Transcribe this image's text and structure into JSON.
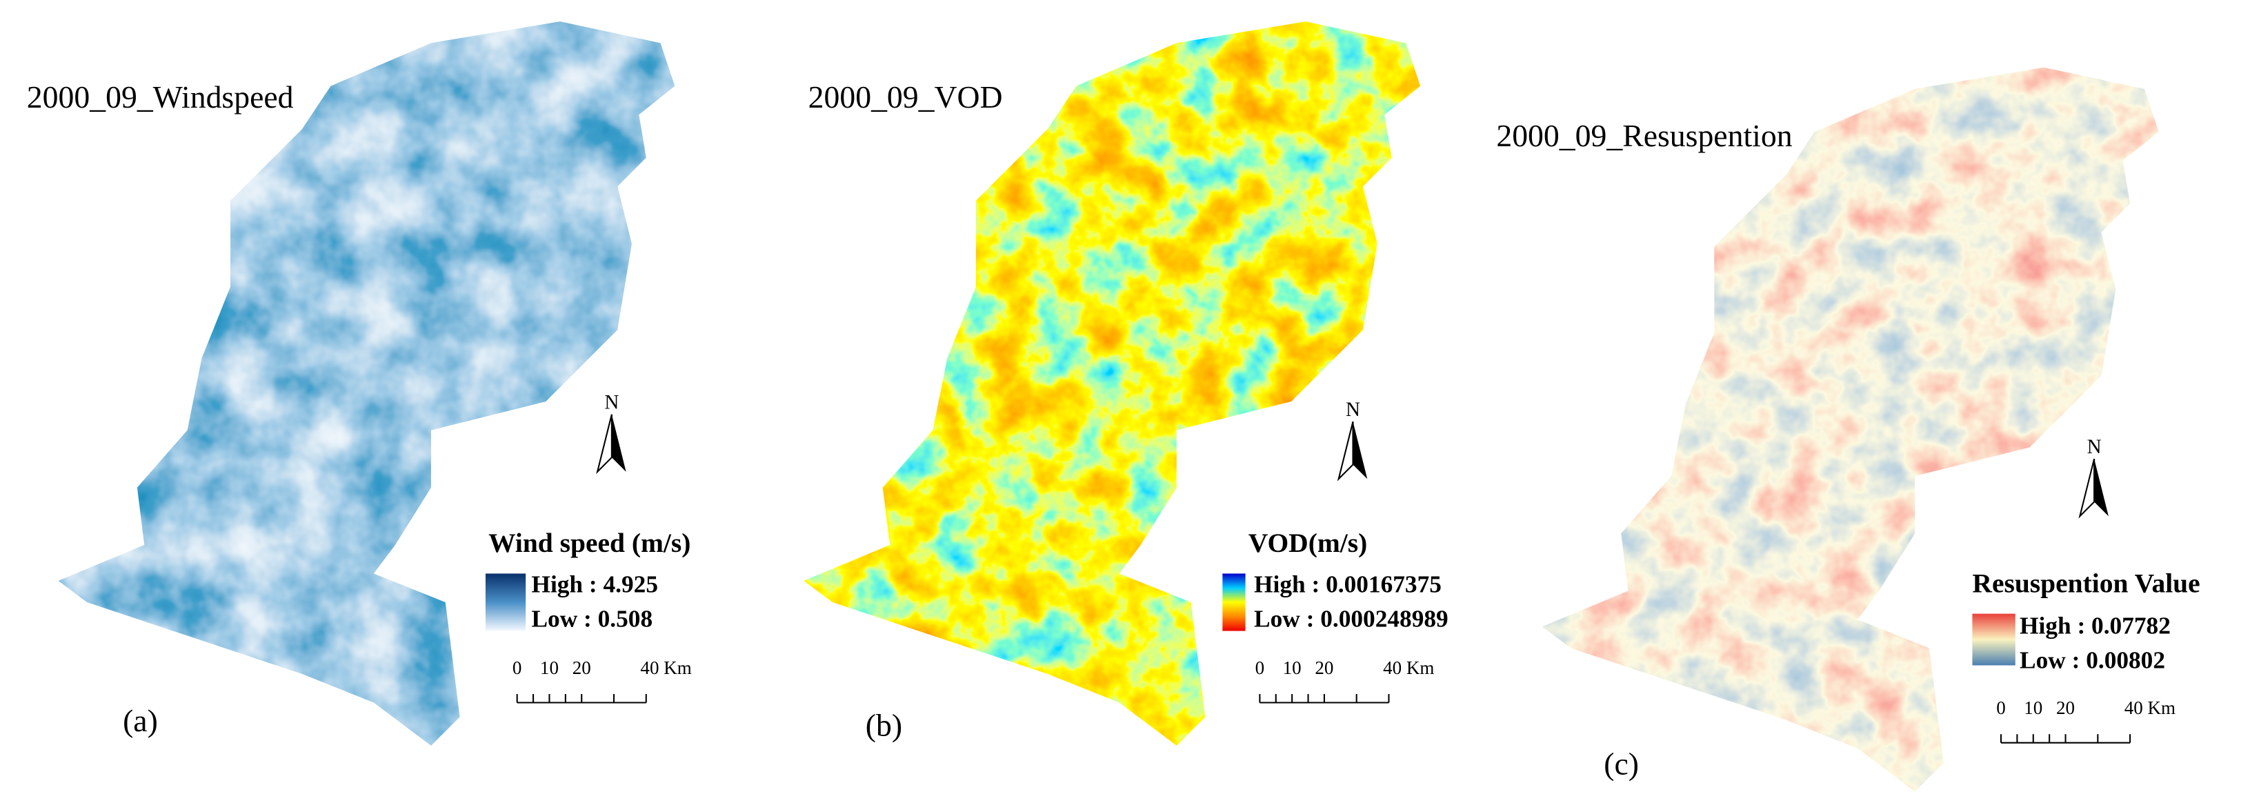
{
  "panels": [
    {
      "title": "2000_09_Windspeed",
      "legend": {
        "title": "Wind speed (m/s)",
        "high": "High : 4.925",
        "low": "Low  : 0.508"
      },
      "scale": [
        "0",
        "10",
        "20",
        "40 Km"
      ],
      "north": "N",
      "label": "(a)"
    },
    {
      "title": "2000_09_VOD",
      "legend": {
        "title": "VOD(m/s)",
        "high": "High : 0.00167375",
        "low": "Low  : 0.000248989"
      },
      "scale": [
        "0",
        "10",
        "20",
        "40 Km"
      ],
      "north": "N",
      "label": "(b)"
    },
    {
      "title": "2000_09_Resuspention",
      "legend": {
        "title": "Resuspention Value",
        "high": "High : 0.07782",
        "low": "Low  : 0.00802"
      },
      "scale": [
        "0",
        "10",
        "20",
        "40 Km"
      ],
      "north": "N",
      "label": "(c)"
    }
  ]
}
